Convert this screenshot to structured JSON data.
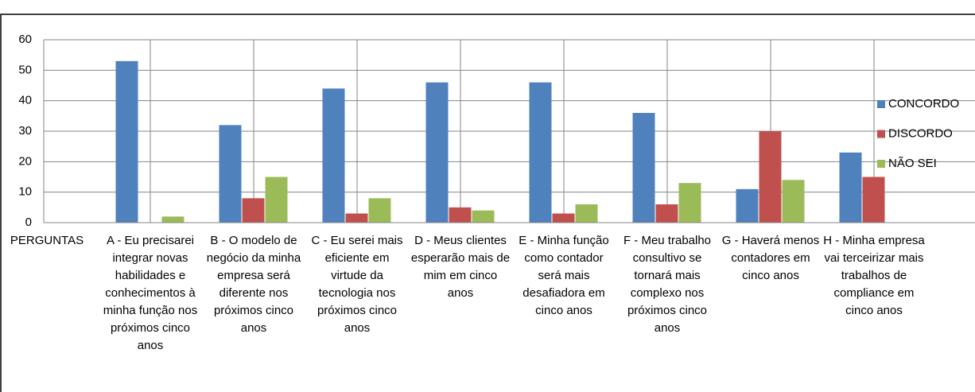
{
  "chart_data": {
    "type": "bar",
    "categories": [
      "PERGUNTAS",
      "A - Eu precisarei integrar novas habilidades e conhecimentos à minha função nos próximos cinco anos",
      "B - O modelo de negócio da minha empresa será diferente nos próximos cinco anos",
      "C - Eu serei mais eficiente em virtude da tecnologia nos próximos cinco anos",
      "D - Meus clientes esperarão mais de mim em cinco anos",
      "E - Minha função como contador será mais desafiadora em cinco anos",
      "F - Meu trabalho consultivo se tornará mais complexo nos próximos cinco anos",
      "G - Haverá menos contadores em cinco anos",
      "H - Minha empresa vai terceirizar mais trabalhos de compliance em cinco anos"
    ],
    "series": [
      {
        "name": "CONCORDO",
        "color": "#4f81bd",
        "values": [
          null,
          53,
          32,
          44,
          46,
          46,
          36,
          11,
          23
        ]
      },
      {
        "name": "DISCORDO",
        "color": "#c0504d",
        "values": [
          null,
          0,
          8,
          3,
          5,
          3,
          6,
          30,
          15
        ]
      },
      {
        "name": "NÃO SEI",
        "color": "#9bbb59",
        "values": [
          null,
          2,
          15,
          8,
          4,
          6,
          13,
          14,
          null
        ]
      }
    ],
    "ylim": [
      0,
      60
    ],
    "yticks": [
      0,
      10,
      20,
      30,
      40,
      50,
      60
    ],
    "grid": true,
    "legend": "right"
  }
}
